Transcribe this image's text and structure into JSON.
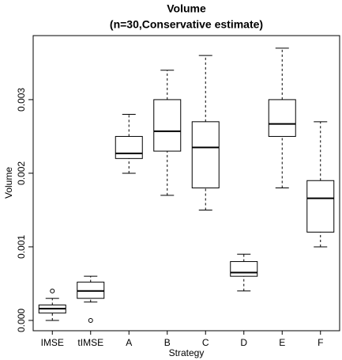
{
  "chart_data": {
    "type": "boxplot",
    "title": "Volume",
    "subtitle": "(n=30,Conservative estimate)",
    "x_label": "Strategy",
    "y_label": "Volume",
    "categories": [
      "IMSE",
      "tIMSE",
      "A",
      "B",
      "C",
      "D",
      "E",
      "F"
    ],
    "boxes": [
      {
        "low": 0,
        "q1": 0.0001,
        "median": 0.00016,
        "q3": 0.00021,
        "high": 0.0003,
        "outliers": [
          0.0004
        ]
      },
      {
        "low": 0.00025,
        "q1": 0.0003,
        "median": 0.0004,
        "q3": 0.00052,
        "high": 0.0006,
        "outliers": [
          0
        ]
      },
      {
        "low": 0.002,
        "q1": 0.0022,
        "median": 0.00227,
        "q3": 0.0025,
        "high": 0.0028,
        "outliers": []
      },
      {
        "low": 0.0017,
        "q1": 0.0023,
        "median": 0.00257,
        "q3": 0.003,
        "high": 0.0034,
        "outliers": []
      },
      {
        "low": 0.0015,
        "q1": 0.0018,
        "median": 0.00235,
        "q3": 0.0027,
        "high": 0.0036,
        "outliers": []
      },
      {
        "low": 0.0004,
        "q1": 0.0006,
        "median": 0.00065,
        "q3": 0.0008,
        "high": 0.0009,
        "outliers": []
      },
      {
        "low": 0.0018,
        "q1": 0.0025,
        "median": 0.00267,
        "q3": 0.003,
        "high": 0.0037,
        "outliers": []
      },
      {
        "low": 0.001,
        "q1": 0.0012,
        "median": 0.00166,
        "q3": 0.0019,
        "high": 0.0027,
        "outliers": []
      }
    ],
    "ylim": [
      -0.00014,
      0.00387
    ],
    "yticks": [
      {
        "value": 0,
        "label": "0.000"
      },
      {
        "value": 0.001,
        "label": "0.001"
      },
      {
        "value": 0.002,
        "label": "0.002"
      },
      {
        "value": 0.003,
        "label": "0.003"
      }
    ],
    "color": "#000000"
  }
}
